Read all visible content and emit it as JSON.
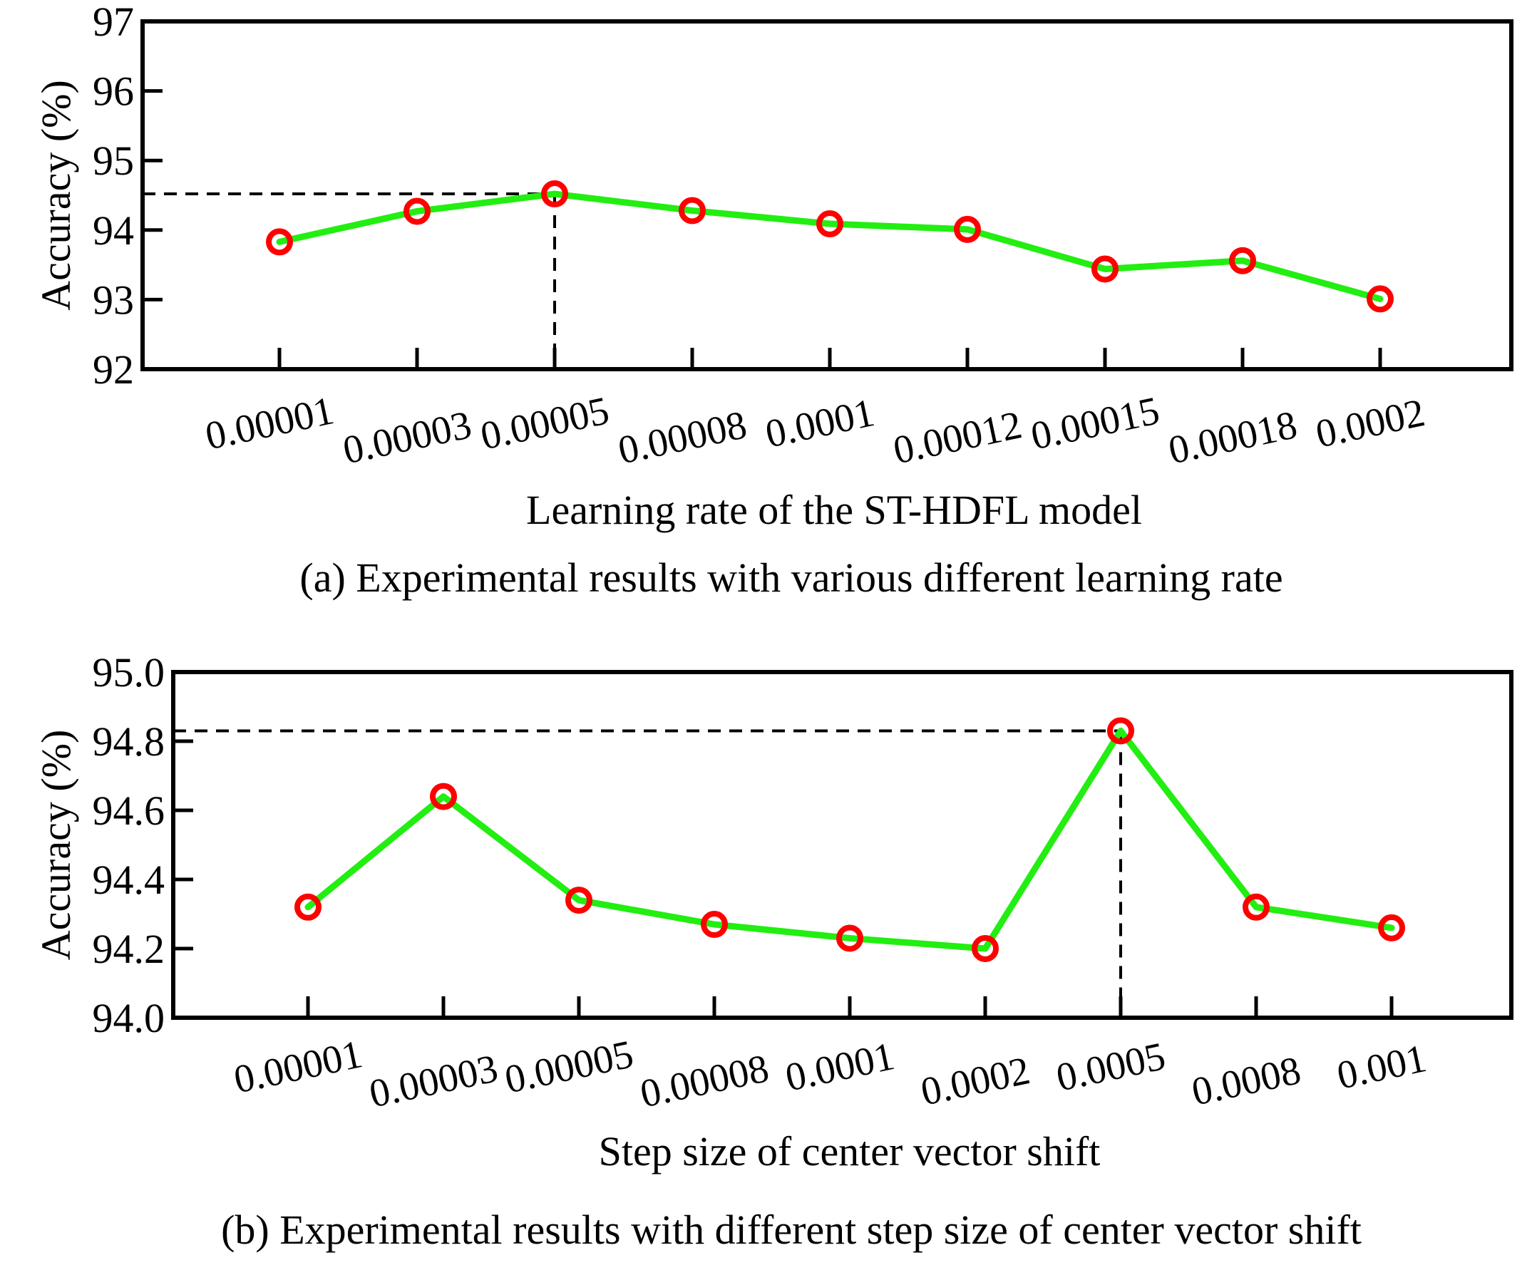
{
  "chart_data": [
    {
      "type": "line",
      "title": "",
      "caption": "(a) Experimental results with various different learning rate",
      "xlabel": "Learning rate of the ST-HDFL model",
      "ylabel": "Accuracy (%)",
      "categories": [
        "0.00001",
        "0.00003",
        "0.00005",
        "0.00008",
        "0.0001",
        "0.00012",
        "0.00015",
        "0.00018",
        "0.0002"
      ],
      "values": [
        93.83,
        94.27,
        94.52,
        94.28,
        94.09,
        94.01,
        93.44,
        93.56,
        93.01
      ],
      "ylim": [
        92,
        97
      ],
      "yticks": [
        "92",
        "93",
        "94",
        "95",
        "96",
        "97"
      ],
      "highlight_index": 2,
      "line_color": "#22ee11",
      "marker_color": "#ff0000",
      "grid": false
    },
    {
      "type": "line",
      "title": "",
      "caption": "(b) Experimental results with different step size of center vector shift",
      "xlabel": "Step size of center vector shift",
      "ylabel": "Accuracy (%)",
      "categories": [
        "0.00001",
        "0.00003",
        "0.00005",
        "0.00008",
        "0.0001",
        "0.0002",
        "0.0005",
        "0.0008",
        "0.001"
      ],
      "values": [
        94.32,
        94.64,
        94.34,
        94.27,
        94.23,
        94.2,
        94.83,
        94.32,
        94.26
      ],
      "ylim": [
        94.0,
        95.0
      ],
      "yticks": [
        "94.0",
        "94.2",
        "94.4",
        "94.6",
        "94.8",
        "95.0"
      ],
      "highlight_index": 6,
      "line_color": "#22ee11",
      "marker_color": "#ff0000",
      "grid": false
    }
  ]
}
